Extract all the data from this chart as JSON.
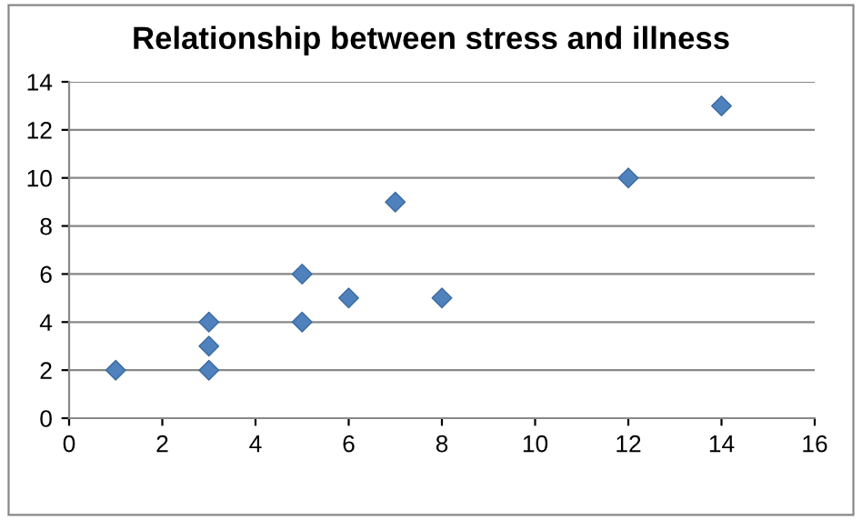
{
  "chart_data": {
    "type": "scatter",
    "title": "Relationship between stress and illness",
    "series": [
      {
        "color": "#4f81bd",
        "x": [
          1,
          3,
          3,
          3,
          5,
          5,
          6,
          7,
          8,
          12,
          14
        ],
        "values": [
          2,
          2,
          3,
          4,
          4,
          6,
          5,
          9,
          5,
          10,
          13
        ]
      }
    ],
    "xlim": [
      0,
      16
    ],
    "xticks": [
      0,
      2,
      4,
      6,
      8,
      10,
      12,
      14,
      16
    ],
    "ylim": [
      0,
      14
    ],
    "yticks": [
      0,
      2,
      4,
      6,
      8,
      10,
      12,
      14
    ],
    "grid": "y",
    "marker": "diamond"
  }
}
